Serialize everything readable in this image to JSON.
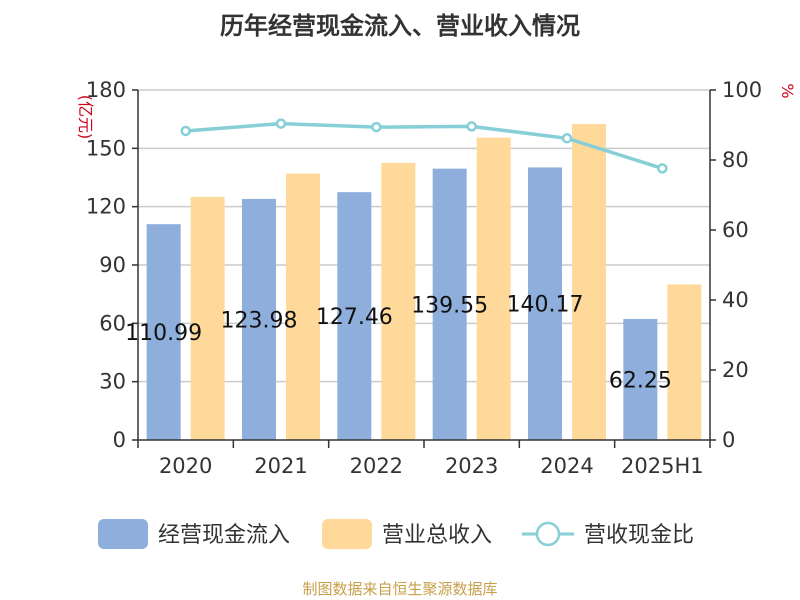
{
  "title": "历年经营现金流入、营业收入情况",
  "source": "制图数据来自恒生聚源数据库",
  "colors": {
    "cash_inflow": "#8eaedb",
    "revenue": "#ffd99a",
    "ratio": "#86cfd6",
    "axis": "#333333",
    "grid": "#cccccc",
    "unit": "#d0021b"
  },
  "chart_data": {
    "type": "bar",
    "title": "历年经营现金流入、营业收入情况",
    "categories": [
      "2020",
      "2021",
      "2022",
      "2023",
      "2024",
      "2025H1"
    ],
    "series": [
      {
        "name": "经营现金流入",
        "kind": "bar",
        "axis": "left",
        "values": [
          110.99,
          123.98,
          127.46,
          139.55,
          140.17,
          62.25
        ],
        "labels": [
          "110.99",
          "123.98",
          "127.46",
          "139.55",
          "140.17",
          "62.25"
        ]
      },
      {
        "name": "营业总收入",
        "kind": "bar",
        "axis": "left",
        "values": [
          125,
          137,
          142.5,
          155.5,
          162.5,
          80
        ]
      },
      {
        "name": "营收现金比",
        "kind": "line",
        "axis": "right",
        "values": [
          88.3,
          90.4,
          89.4,
          89.6,
          86.2,
          77.6
        ]
      }
    ],
    "ylabel": "(亿元)",
    "ylim": [
      0,
      180
    ],
    "yticks": [
      "0",
      "30",
      "60",
      "90",
      "120",
      "150",
      "180"
    ],
    "y2label": "%",
    "y2lim": [
      0,
      100
    ],
    "y2ticks": [
      "0",
      "20",
      "40",
      "60",
      "80",
      "100"
    ],
    "grid": true,
    "legend_position": "bottom"
  }
}
